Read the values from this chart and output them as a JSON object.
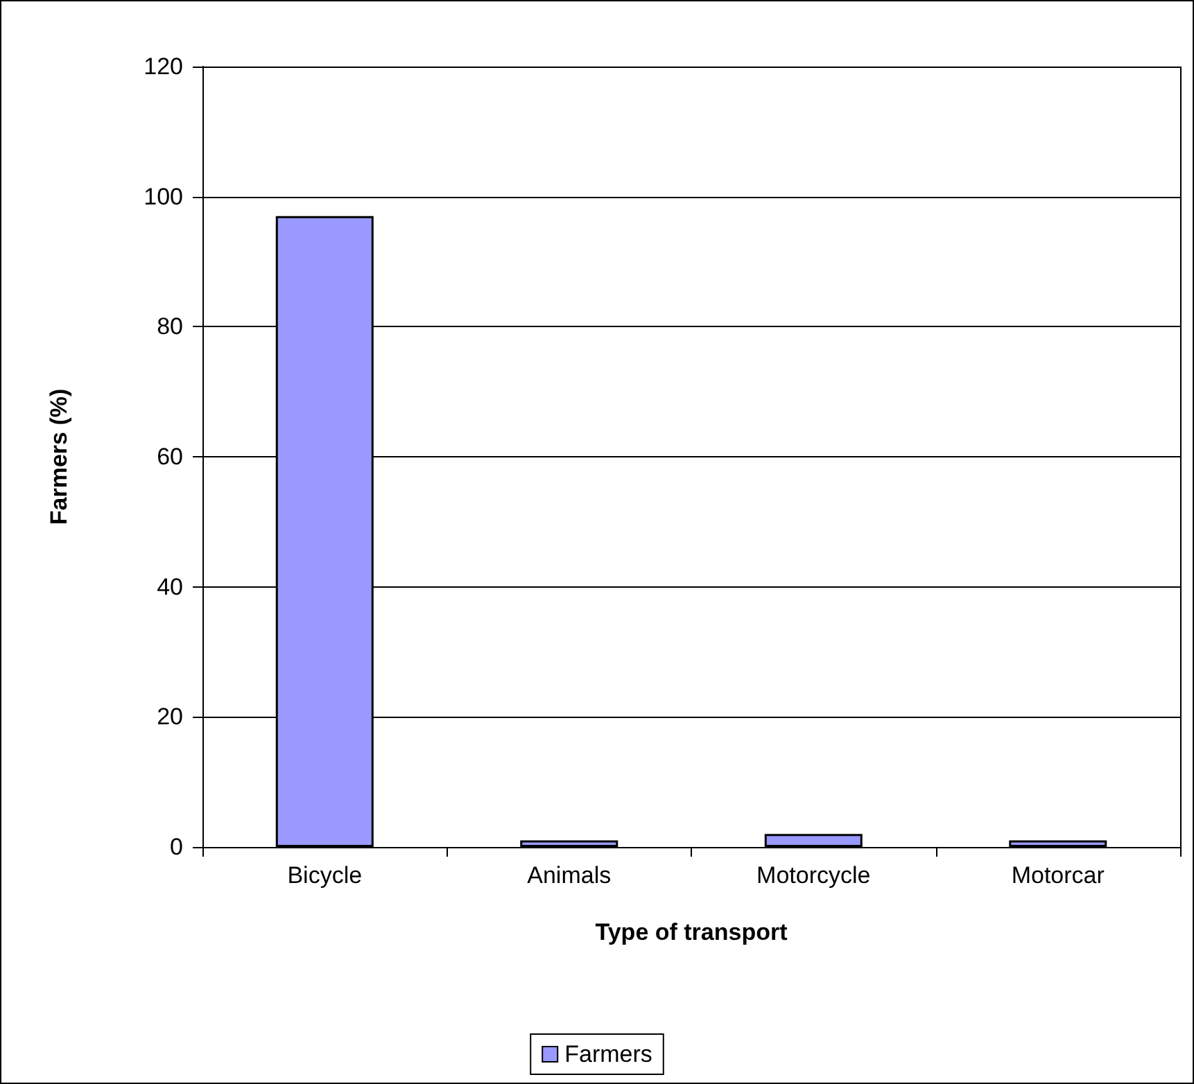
{
  "chart_data": {
    "type": "bar",
    "xlabel": "Type of transport",
    "ylabel": "Farmers (%)",
    "categories": [
      "Bicycle",
      "Animals",
      "Motorcycle",
      "Motorcar"
    ],
    "series": [
      {
        "name": "Farmers",
        "color": "#9999ff",
        "values": [
          97,
          1,
          2,
          1
        ]
      }
    ],
    "ylim": [
      0,
      120
    ],
    "yticks": [
      0,
      20,
      40,
      60,
      80,
      100,
      120
    ],
    "grid": "y",
    "legend": "bottom"
  }
}
